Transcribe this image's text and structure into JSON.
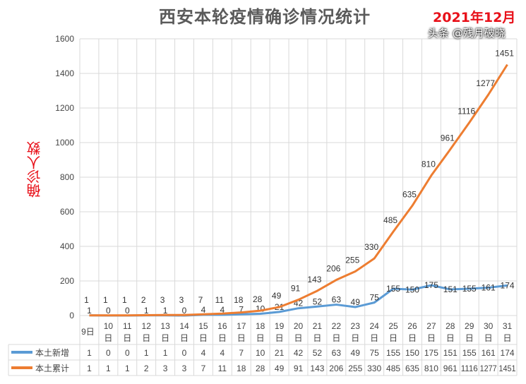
{
  "chart_data": {
    "type": "line",
    "title": "西安本轮疫情确诊情况统计",
    "subtitle": "2021年12月",
    "ylabel": "确诊人数",
    "xlabel": "",
    "ylim": [
      0,
      1600
    ],
    "yticks": [
      0,
      200,
      400,
      600,
      800,
      1000,
      1200,
      1400,
      1600
    ],
    "grid": true,
    "legend": "bottom-table",
    "categories": [
      "9日",
      "10日",
      "11日",
      "12日",
      "13日",
      "14日",
      "15日",
      "16日",
      "17日",
      "18日",
      "19日",
      "20日",
      "21日",
      "22日",
      "23日",
      "24日",
      "25日",
      "26日",
      "27日",
      "28日",
      "29日",
      "30日",
      "31日"
    ],
    "series": [
      {
        "name": "本土新增",
        "color": "#5b9bd5",
        "values": [
          1,
          0,
          0,
          1,
          1,
          0,
          4,
          4,
          7,
          10,
          21,
          42,
          52,
          63,
          49,
          75,
          155,
          150,
          175,
          151,
          155,
          161,
          174
        ]
      },
      {
        "name": "本土累计",
        "color": "#ed7d31",
        "values": [
          1,
          1,
          1,
          2,
          3,
          3,
          7,
          11,
          18,
          28,
          49,
          91,
          143,
          206,
          255,
          330,
          485,
          635,
          810,
          961,
          1116,
          1277,
          1451
        ]
      }
    ]
  },
  "watermark": "头条 @残月破晓"
}
